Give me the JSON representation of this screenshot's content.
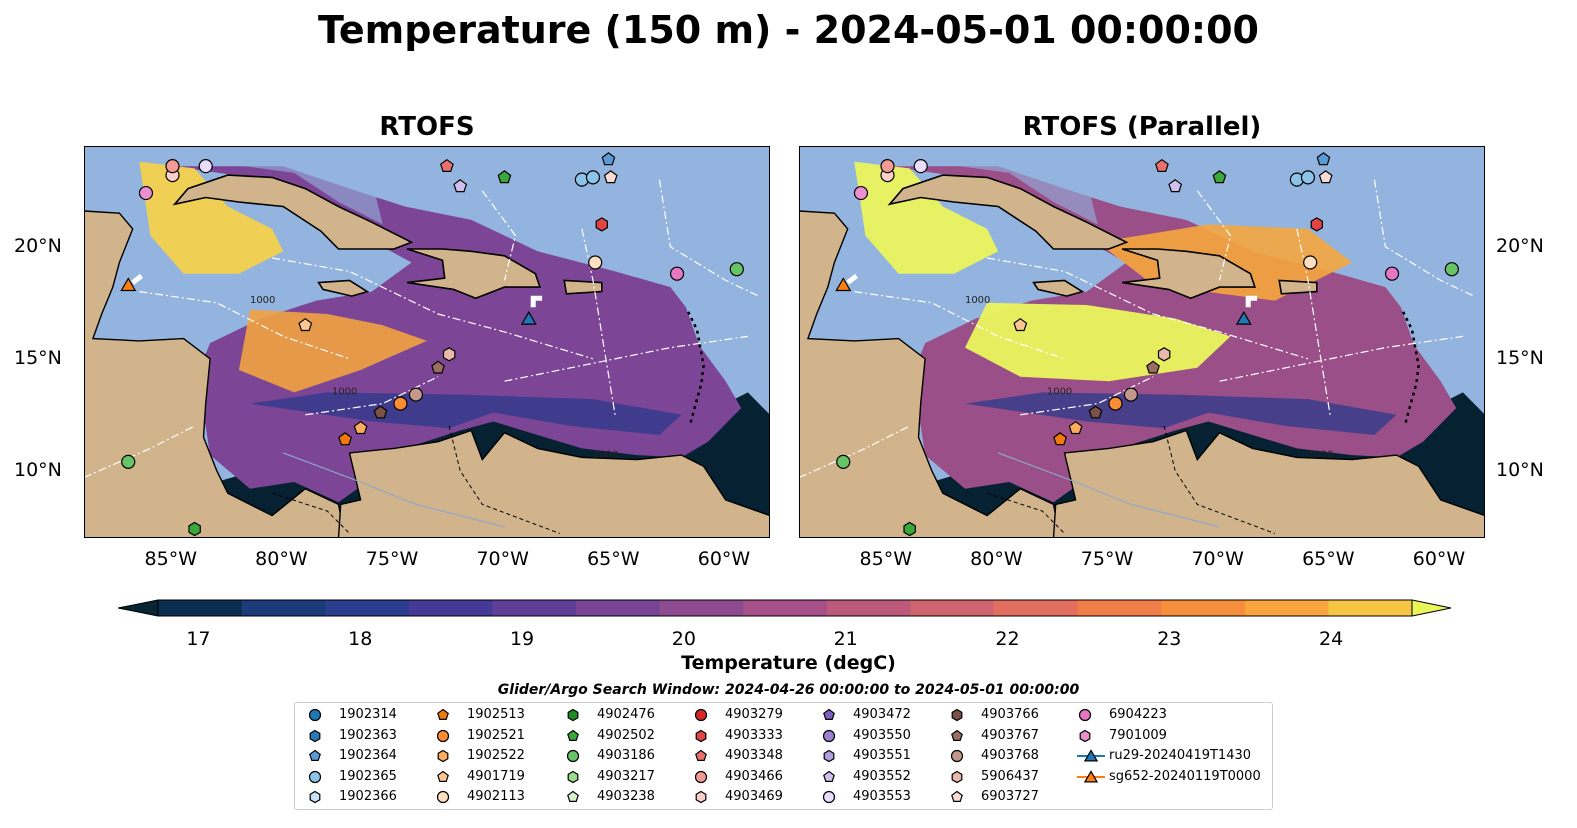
{
  "figure": {
    "suptitle": "Temperature (150 m) - 2024-05-01 00:00:00",
    "panels": [
      {
        "title": "RTOFS"
      },
      {
        "title": "RTOFS (Parallel)"
      }
    ],
    "lon_ticks": [
      "85°W",
      "80°W",
      "75°W",
      "70°W",
      "65°W",
      "60°W"
    ],
    "lat_ticks": [
      "20°N",
      "15°N",
      "10°N"
    ],
    "extent": {
      "lon": [
        -89,
        -58
      ],
      "lat": [
        7,
        24.5
      ]
    },
    "contour_label": "1000",
    "colors": {
      "ocean_shelf": "#93b4df",
      "land": "#d2b48c",
      "deep_dark": "#062131",
      "hot": "#eaf55c"
    }
  },
  "colorbar": {
    "label": "Temperature (degC)",
    "ticks": [
      "17",
      "18",
      "19",
      "20",
      "21",
      "22",
      "23",
      "24"
    ],
    "range": [
      16.75,
      24.5
    ],
    "levels_colors": [
      "#082533",
      "#0c2c50",
      "#1d3a7a",
      "#2b3d8f",
      "#453a95",
      "#5e3f97",
      "#774496",
      "#8e4a8f",
      "#a65087",
      "#bc5a7c",
      "#cf6570",
      "#e16e5e",
      "#ef7e48",
      "#f68e3b",
      "#f9a43c",
      "#f6c545",
      "#eaf55c"
    ]
  },
  "search_window": "Glider/Argo Search Window: 2024-04-26 00:00:00 to 2024-05-01 00:00:00",
  "legend": {
    "columns": [
      [
        {
          "label": "1902314",
          "marker": "circle",
          "color": "#1f77b4"
        },
        {
          "label": "1902363",
          "marker": "hexagon",
          "color": "#2a7ab8"
        },
        {
          "label": "1902364",
          "marker": "pentagon",
          "color": "#5b9bd5"
        },
        {
          "label": "1902365",
          "marker": "circle",
          "color": "#8cc3e8"
        },
        {
          "label": "1902366",
          "marker": "hexagon",
          "color": "#c6e2f5"
        }
      ],
      [
        {
          "label": "1902513",
          "marker": "pentagon",
          "color": "#f07a0c"
        },
        {
          "label": "1902521",
          "marker": "circle",
          "color": "#fa8c34"
        },
        {
          "label": "1902522",
          "marker": "hexagon",
          "color": "#fbad5d"
        },
        {
          "label": "4901719",
          "marker": "pentagon",
          "color": "#fdc791"
        },
        {
          "label": "4902113",
          "marker": "circle",
          "color": "#fde0c0"
        }
      ],
      [
        {
          "label": "4902476",
          "marker": "hexagon",
          "color": "#1e8c1e"
        },
        {
          "label": "4902502",
          "marker": "pentagon",
          "color": "#3aa83a"
        },
        {
          "label": "4903186",
          "marker": "circle",
          "color": "#66c466"
        },
        {
          "label": "4903217",
          "marker": "hexagon",
          "color": "#9bdb8e"
        },
        {
          "label": "4903238",
          "marker": "pentagon",
          "color": "#d3f2c8"
        }
      ],
      [
        {
          "label": "4903279",
          "marker": "circle",
          "color": "#d62728"
        },
        {
          "label": "4903333",
          "marker": "hexagon",
          "color": "#e04444"
        },
        {
          "label": "4903348",
          "marker": "pentagon",
          "color": "#ea6f6f"
        },
        {
          "label": "4903466",
          "marker": "circle",
          "color": "#f39b95"
        },
        {
          "label": "4903469",
          "marker": "hexagon",
          "color": "#fbd0c8"
        }
      ],
      [
        {
          "label": "4903472",
          "marker": "pentagon",
          "color": "#7e5fc4"
        },
        {
          "label": "4903550",
          "marker": "circle",
          "color": "#9a7fd3"
        },
        {
          "label": "4903551",
          "marker": "hexagon",
          "color": "#b39ee0"
        },
        {
          "label": "4903552",
          "marker": "pentagon",
          "color": "#d0c0ef"
        },
        {
          "label": "4903553",
          "marker": "circle",
          "color": "#eadcfb"
        }
      ],
      [
        {
          "label": "4903766",
          "marker": "hexagon",
          "color": "#7a5248"
        },
        {
          "label": "4903767",
          "marker": "pentagon",
          "color": "#9c6d63"
        },
        {
          "label": "4903768",
          "marker": "circle",
          "color": "#c4978b"
        },
        {
          "label": "5906437",
          "marker": "hexagon",
          "color": "#e8b9ab"
        },
        {
          "label": "6903727",
          "marker": "pentagon",
          "color": "#f8dcd3"
        }
      ],
      [
        {
          "label": "6904223",
          "marker": "circle",
          "color": "#e377c2"
        },
        {
          "label": "7901009",
          "marker": "hexagon",
          "color": "#ea8fcf"
        },
        {
          "label": "ru29-20240419T1430",
          "marker": "triangle-line",
          "color": "#1f77b4"
        },
        {
          "label": "sg652-20240119T0000",
          "marker": "triangle-line",
          "color": "#ff7f0e"
        }
      ]
    ]
  }
}
